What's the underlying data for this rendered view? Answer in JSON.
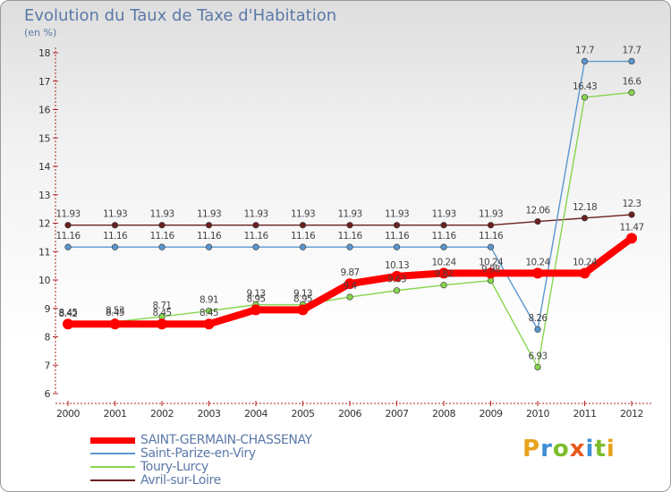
{
  "title": "Evolution du Taux de Taxe d'Habitation",
  "subtitle": "(en %)",
  "logo": {
    "letters": [
      {
        "char": "P",
        "color": "#e8a21c"
      },
      {
        "char": "r",
        "color": "#3d8fd6"
      },
      {
        "char": "o",
        "color": "#7cbd2c"
      },
      {
        "char": "x",
        "color": "#e8591c"
      },
      {
        "char": "i",
        "color": "#3d8fd6"
      },
      {
        "char": "t",
        "color": "#7cbd2c"
      },
      {
        "char": "i",
        "color": "#e8a21c"
      }
    ]
  },
  "chart_data": {
    "type": "line",
    "title": "Evolution du Taux de Taxe d'Habitation",
    "ylabel": "(en %)",
    "xlabel": "",
    "ylim": [
      6,
      18
    ],
    "yticks": [
      6,
      7,
      8,
      9,
      10,
      11,
      12,
      13,
      14,
      15,
      16,
      17,
      18
    ],
    "grid": false,
    "legend_position": "bottom",
    "categories": [
      "2000",
      "2001",
      "2002",
      "2003",
      "2004",
      "2005",
      "2006",
      "2007",
      "2008",
      "2009",
      "2010",
      "2011",
      "2012"
    ],
    "series": [
      {
        "name": "Avril-sur-Loire",
        "color": "#6b1f1f",
        "values": [
          11.93,
          11.93,
          11.93,
          11.93,
          11.93,
          11.93,
          11.93,
          11.93,
          11.93,
          11.93,
          12.06,
          12.18,
          12.3
        ],
        "labels": [
          "11.93",
          "11.93",
          "11.93",
          "11.93",
          "11.93",
          "11.93",
          "11.93",
          "11.93",
          "11.93",
          "11.93",
          "12.06",
          "12.18",
          "12.3"
        ]
      },
      {
        "name": "Saint-Parize-en-Viry",
        "color": "#5b96d0",
        "values": [
          11.16,
          11.16,
          11.16,
          11.16,
          11.16,
          11.16,
          11.16,
          11.16,
          11.16,
          11.16,
          8.26,
          17.7,
          17.7
        ],
        "labels": [
          "11.16",
          "11.16",
          "11.16",
          "11.16",
          "11.16",
          "11.16",
          "11.16",
          "11.16",
          "11.16",
          "11.16",
          "8.26",
          "17.7",
          "17.7"
        ]
      },
      {
        "name": "Toury-Lurcy",
        "color": "#86d64e",
        "values": [
          8.42,
          8.53,
          8.71,
          8.91,
          9.13,
          9.13,
          9.4,
          9.63,
          9.82,
          9.98,
          6.93,
          16.43,
          16.6
        ],
        "labels": [
          "8.42",
          "8.53",
          "8.71",
          "8.91",
          "9.13",
          "9.13",
          "9.4",
          "9.63",
          "9.82",
          "9.98",
          "6.93",
          "16.43",
          "16.6"
        ]
      },
      {
        "name": "SAINT-GERMAIN-CHASSENAY",
        "color": "#ff0000",
        "values": [
          8.45,
          8.45,
          8.45,
          8.45,
          8.95,
          8.95,
          9.87,
          10.13,
          10.24,
          10.24,
          10.24,
          10.24,
          11.47
        ],
        "labels": [
          "8.45",
          "8.45",
          "8.45",
          "8.45",
          "8.95",
          "8.95",
          "9.87",
          "10.13",
          "10.24",
          "10.24",
          "10.24",
          "10.24",
          "11.47"
        ]
      }
    ]
  },
  "legend": [
    {
      "label": "SAINT-GERMAIN-CHASSENAY",
      "color": "#ff0000",
      "weight": 7
    },
    {
      "label": "Saint-Parize-en-Viry",
      "color": "#5b96d0",
      "weight": 2
    },
    {
      "label": "Toury-Lurcy",
      "color": "#86d64e",
      "weight": 2
    },
    {
      "label": "Avril-sur-Loire",
      "color": "#6b1f1f",
      "weight": 2
    }
  ]
}
